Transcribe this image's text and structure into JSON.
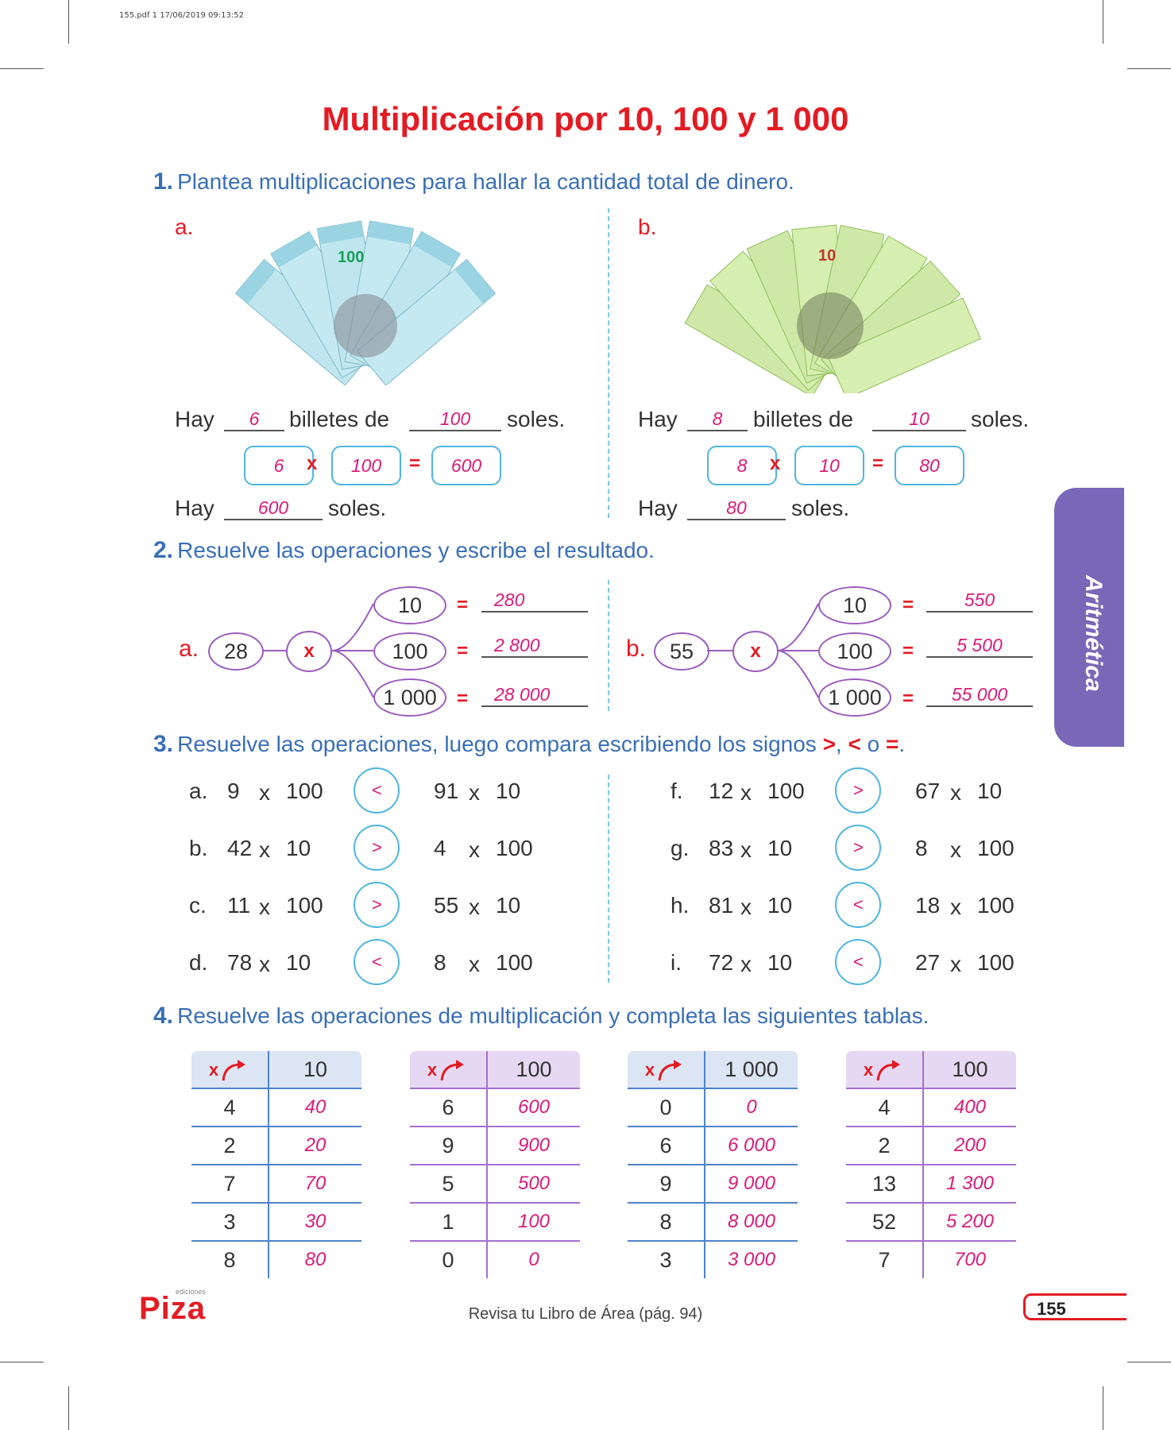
{
  "print_header": "155.pdf   1   17/06/2019   09:13:52",
  "title": "Multiplicación por 10, 100 y 1 000",
  "q1": {
    "num": "1.",
    "text": "Plantea multiplicaciones para hallar la cantidad total de dinero.",
    "a": {
      "letter": "a.",
      "hay": "Hay",
      "count": "6",
      "billetes": "billetes de",
      "value": "100",
      "soles": "soles.",
      "f1": "6",
      "x": "x",
      "f2": "100",
      "eq": "=",
      "res": "600",
      "total": "600",
      "bill_label": "100"
    },
    "b": {
      "letter": "b.",
      "hay": "Hay",
      "count": "8",
      "billetes": "billetes de",
      "value": "10",
      "soles": "soles.",
      "f1": "8",
      "x": "x",
      "f2": "10",
      "eq": "=",
      "res": "80",
      "total": "80",
      "bill_label": "10"
    }
  },
  "q2": {
    "num": "2.",
    "text": "Resuelve las operaciones y escribe el resultado.",
    "a": {
      "letter": "a.",
      "base": "28",
      "x": "x",
      "m": [
        "10",
        "100",
        "1 000"
      ],
      "eq": "=",
      "r": [
        "280",
        "2 800",
        "28 000"
      ]
    },
    "b": {
      "letter": "b.",
      "base": "55",
      "x": "x",
      "m": [
        "10",
        "100",
        "1 000"
      ],
      "eq": "=",
      "r": [
        "550",
        "5 500",
        "55 000"
      ]
    }
  },
  "q3": {
    "num": "3.",
    "text_pre": "Resuelve las operaciones, luego compara escribiendo los signos",
    "gt": ">",
    "comma": ",",
    "lt": "<",
    "o": "o",
    "eqsign": "=",
    "dot": ".",
    "rows": [
      {
        "l": "a.",
        "a": "9",
        "b": "100",
        "s": "<",
        "c": "91",
        "d": "10"
      },
      {
        "l": "b.",
        "a": "42",
        "b": "10",
        "s": ">",
        "c": "4",
        "d": "100"
      },
      {
        "l": "c.",
        "a": "11",
        "b": "100",
        "s": ">",
        "c": "55",
        "d": "10"
      },
      {
        "l": "d.",
        "a": "78",
        "b": "10",
        "s": "<",
        "c": "8",
        "d": "100"
      },
      {
        "l": "f.",
        "a": "12",
        "b": "100",
        "s": ">",
        "c": "67",
        "d": "10"
      },
      {
        "l": "g.",
        "a": "83",
        "b": "10",
        "s": ">",
        "c": "8",
        "d": "100"
      },
      {
        "l": "h.",
        "a": "81",
        "b": "10",
        "s": "<",
        "c": "18",
        "d": "100"
      },
      {
        "l": "i.",
        "a": "72",
        "b": "10",
        "s": "<",
        "c": "27",
        "d": "100"
      }
    ],
    "x": "x"
  },
  "q4": {
    "num": "4.",
    "text": "Resuelve las operaciones de multiplicación y completa las siguientes tablas.",
    "x": "x",
    "tables": [
      {
        "head": "10",
        "rows": [
          [
            "4",
            "40"
          ],
          [
            "2",
            "20"
          ],
          [
            "7",
            "70"
          ],
          [
            "3",
            "30"
          ],
          [
            "8",
            "80"
          ]
        ]
      },
      {
        "head": "100",
        "rows": [
          [
            "6",
            "600"
          ],
          [
            "9",
            "900"
          ],
          [
            "5",
            "500"
          ],
          [
            "1",
            "100"
          ],
          [
            "0",
            "0"
          ]
        ]
      },
      {
        "head": "1 000",
        "rows": [
          [
            "0",
            "0"
          ],
          [
            "6",
            "6 000"
          ],
          [
            "9",
            "9 000"
          ],
          [
            "8",
            "8 000"
          ],
          [
            "3",
            "3 000"
          ]
        ]
      },
      {
        "head": "100",
        "rows": [
          [
            "4",
            "400"
          ],
          [
            "2",
            "200"
          ],
          [
            "13",
            "1 300"
          ],
          [
            "52",
            "5 200"
          ],
          [
            "7",
            "700"
          ]
        ]
      }
    ]
  },
  "side_tab": "Aritmética",
  "footer": "Revisa tu Libro de Área (pág. 94)",
  "page_number": "155",
  "logo": "Piza",
  "logo_small": "ediciones",
  "colors": {
    "title": "#e31b23",
    "question": "#3a6fb7",
    "answer": "#d81b7a",
    "tab": "#7967b8"
  }
}
